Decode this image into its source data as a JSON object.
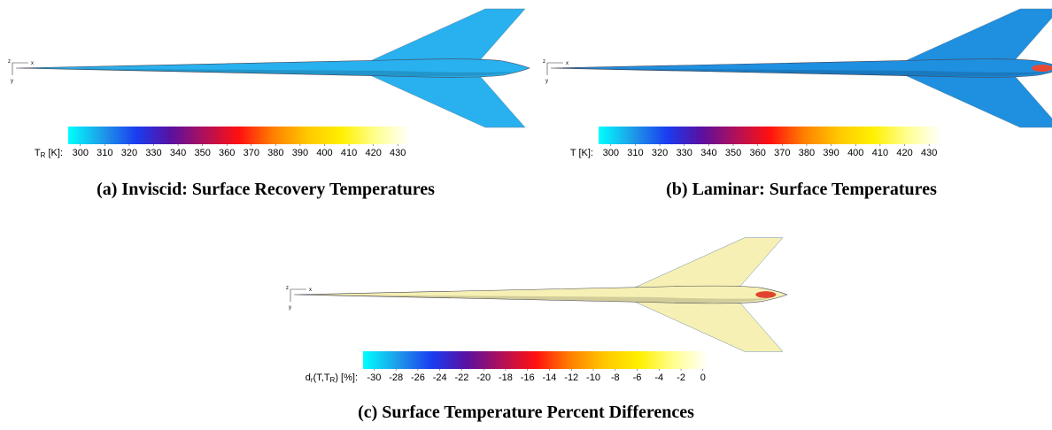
{
  "colormap": [
    "#00ffff",
    "#1e9be8",
    "#1a3cf0",
    "#5a10a0",
    "#b0105a",
    "#ff1010",
    "#ff8000",
    "#ffc800",
    "#fff000",
    "#ffff90",
    "#ffffff"
  ],
  "triad_labels": [
    "x",
    "y",
    "z"
  ],
  "panels": [
    {
      "caption": "(a) Inviscid: Surface Recovery Temperatures",
      "surface_color": "#29b0ee",
      "colorbar_label": [
        {
          "text": "T"
        },
        {
          "sub": "R"
        },
        {
          "text": " [K]:"
        }
      ],
      "clim": [
        295,
        435
      ],
      "ticks": [
        300,
        310,
        320,
        330,
        340,
        350,
        360,
        370,
        380,
        390,
        400,
        410,
        420,
        430
      ]
    },
    {
      "caption": "(b) Laminar: Surface Temperatures",
      "surface_color": "#1f8fe0",
      "colorbar_label": [
        {
          "text": "T [K]:"
        }
      ],
      "clim": [
        295,
        435
      ],
      "ticks": [
        300,
        310,
        320,
        330,
        340,
        350,
        360,
        370,
        380,
        390,
        400,
        410,
        420,
        430
      ]
    },
    {
      "caption": "(c) Surface Temperature Percent Differences",
      "surface_color": "#f6f0b4",
      "colorbar_label": [
        {
          "text": "d"
        },
        {
          "sub": "r"
        },
        {
          "text": "(T,T"
        },
        {
          "sub": "R"
        },
        {
          "text": ") [%]:"
        }
      ],
      "clim": [
        -31,
        0.5
      ],
      "ticks": [
        -30,
        -28,
        -26,
        -24,
        -22,
        -20,
        -18,
        -16,
        -14,
        -12,
        -10,
        -8,
        -6,
        -4,
        -2,
        0
      ]
    }
  ]
}
